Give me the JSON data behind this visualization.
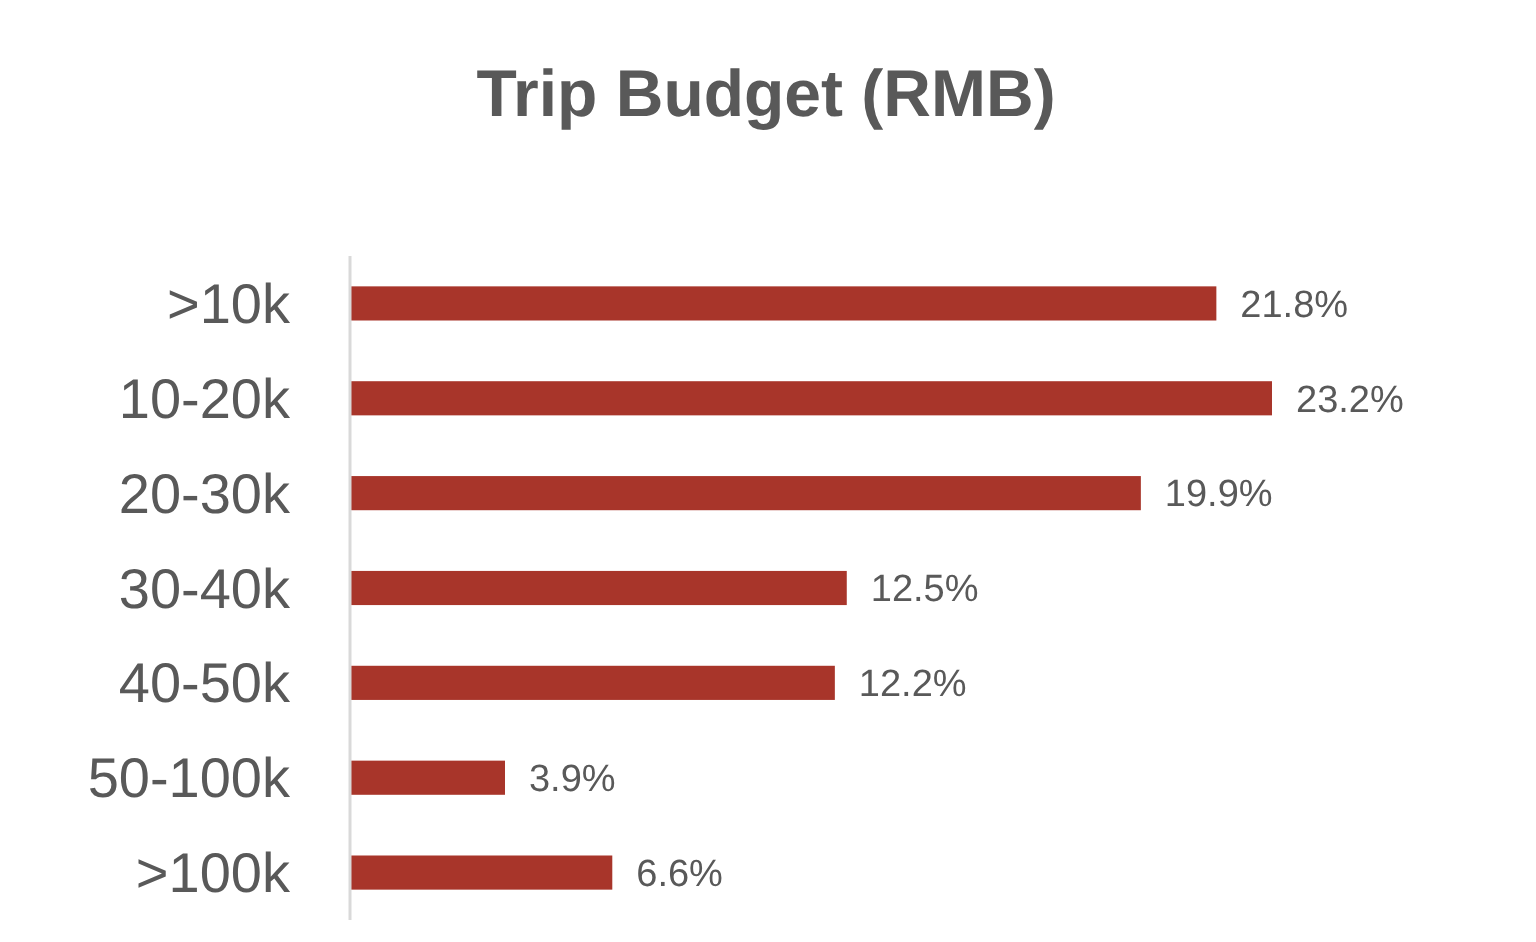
{
  "chart_data": {
    "type": "bar",
    "orientation": "horizontal",
    "title": "Trip Budget (RMB)",
    "categories": [
      ">10k",
      "10-20k",
      "20-30k",
      "30-40k",
      "40-50k",
      "50-100k",
      ">100k"
    ],
    "values": [
      21.8,
      23.2,
      19.9,
      12.5,
      12.2,
      3.9,
      6.6
    ],
    "value_labels": [
      "21.8%",
      "23.2%",
      "19.9%",
      "12.5%",
      "12.2%",
      "3.9%",
      "6.6%"
    ],
    "color": "#a8352a"
  }
}
